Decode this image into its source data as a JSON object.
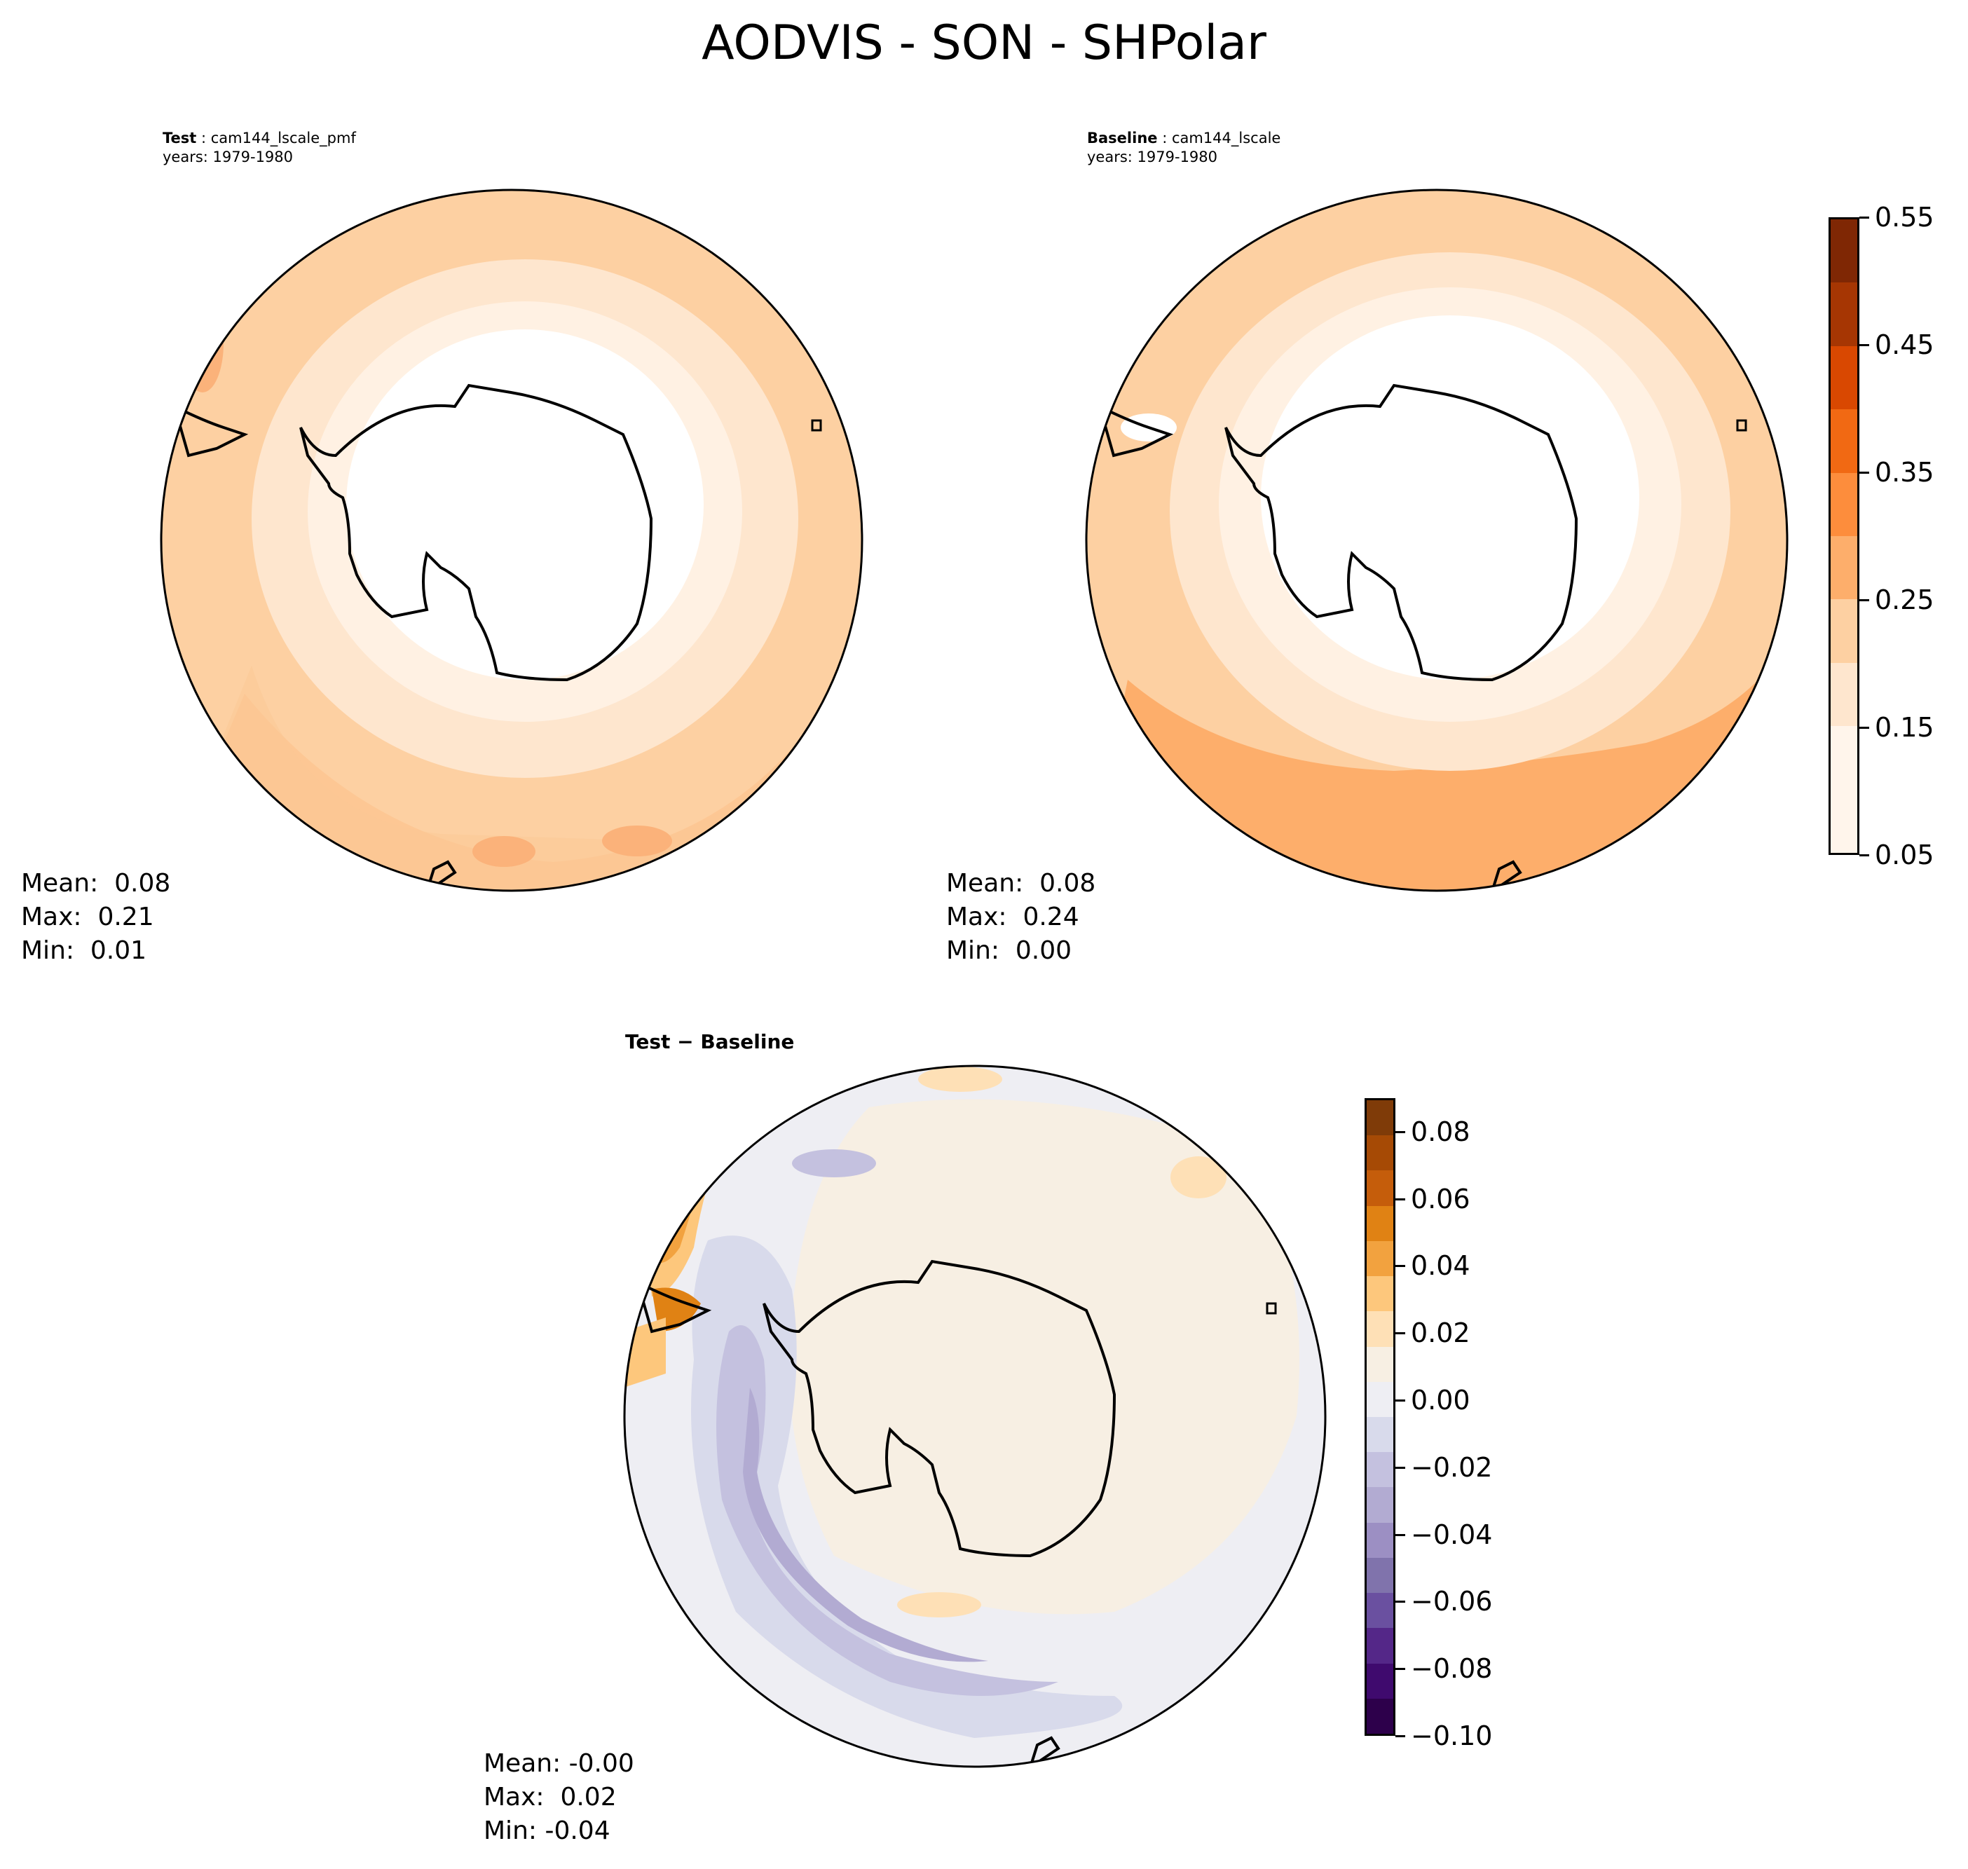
{
  "title": "AODVIS - SON - SHPolar",
  "panels": {
    "test": {
      "label": "Test",
      "case": "cam144_lscale_pmf",
      "years": "years: 1979-1980",
      "mean": "Mean:  0.08",
      "max": "Max:  0.21",
      "min": "Min:  0.01"
    },
    "baseline": {
      "label": "Baseline",
      "case": "cam144_lscale",
      "years": "years: 1979-1980",
      "mean": "Mean:  0.08",
      "max": "Max:  0.24",
      "min": "Min:  0.00"
    },
    "diff": {
      "label": "Test − Baseline",
      "mean": "Mean: -0.00",
      "max": "Max:  0.02",
      "min": "Min: -0.04"
    }
  },
  "colorbars": {
    "main": {
      "ticks": [
        "0.55",
        "0.45",
        "0.35",
        "0.25",
        "0.15",
        "0.05"
      ],
      "colors": [
        "#7f2704",
        "#a63603",
        "#d94801",
        "#f16913",
        "#fd8d3c",
        "#fdae6b",
        "#fdd0a2",
        "#fee6ce",
        "#fff5eb",
        "#fff5eb"
      ]
    },
    "diff": {
      "ticks": [
        "0.08",
        "0.06",
        "0.04",
        "0.02",
        "0.00",
        "−0.02",
        "−0.04",
        "−0.06",
        "−0.08",
        "−0.10"
      ],
      "colors": [
        "#7f3b08",
        "#a64a05",
        "#c55d0b",
        "#e08214",
        "#f2a23f",
        "#fdc77c",
        "#fee0b6",
        "#f7efe3",
        "#eeeef3",
        "#d8daeb",
        "#c4c1df",
        "#b2abd2",
        "#9c8fc3",
        "#8073ac",
        "#6a50a0",
        "#542788",
        "#3f0a6e",
        "#2d004b"
      ]
    }
  }
}
